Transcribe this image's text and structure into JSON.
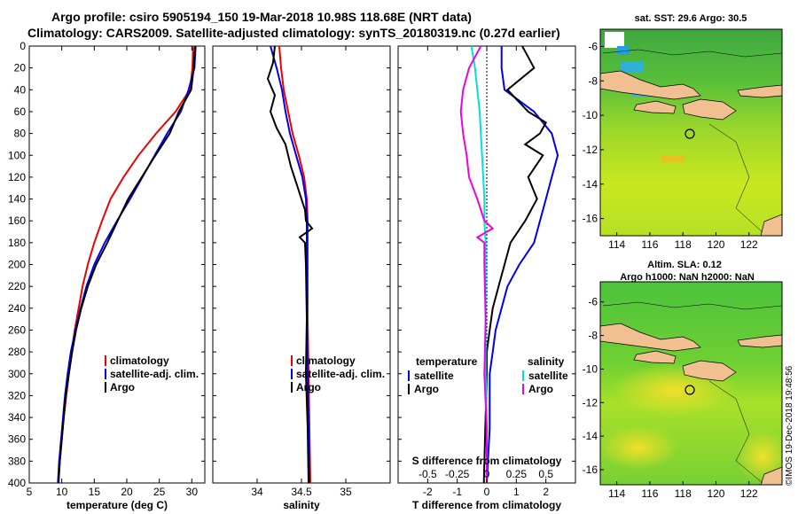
{
  "header": {
    "line1": "Argo profile: csiro 5905194_150 19-Mar-2018 10.98S 118.68E (NRT data)",
    "line2": "Climatology: CARS2009. Satellite-adjusted climatology: synTS_20180319.nc (0.27d earlier)"
  },
  "colors": {
    "climatology": "#ee0000",
    "satellite": "#0000ee",
    "argo": "#000000",
    "temp_sat_diff": "#0000ee",
    "sal_sat_diff": "#00e0e0",
    "sal_argo_diff": "#ee00ee",
    "land": "#f0c090"
  },
  "chart_data": [
    {
      "type": "line",
      "name": "temperature-panel",
      "xlabel": "temperature (deg C)",
      "xlim": [
        5,
        32
      ],
      "ylim": [
        400,
        0
      ],
      "xticks": [
        "5",
        "10",
        "15",
        "20",
        "25",
        "30"
      ],
      "yticks": [
        "0",
        "20",
        "40",
        "60",
        "80",
        "100",
        "120",
        "140",
        "160",
        "180",
        "200",
        "220",
        "240",
        "260",
        "280",
        "300",
        "320",
        "340",
        "360",
        "380",
        "400"
      ],
      "legend": [
        "climatology",
        "satellite-adj. clim.",
        "Argo"
      ],
      "series": [
        {
          "name": "climatology",
          "depth": [
            0,
            20,
            40,
            60,
            80,
            100,
            120,
            140,
            160,
            180,
            200,
            220,
            240,
            260,
            280,
            300,
            320,
            340,
            360,
            380,
            400
          ],
          "values": [
            30.2,
            30.1,
            29.7,
            27.5,
            24.5,
            21.8,
            19.5,
            17.5,
            16.2,
            15.0,
            14.0,
            13.2,
            12.6,
            12.0,
            11.5,
            11.1,
            10.7,
            10.3,
            10.0,
            9.7,
            9.5
          ]
        },
        {
          "name": "satellite-adj. clim.",
          "depth": [
            0,
            20,
            40,
            60,
            80,
            100,
            120,
            140,
            160,
            180,
            200,
            220,
            240,
            260,
            280,
            300,
            320,
            340,
            360,
            380,
            400
          ],
          "values": [
            30.6,
            30.4,
            29.5,
            28.3,
            26.2,
            24.3,
            22.4,
            20.5,
            18.5,
            16.6,
            15.0,
            13.8,
            12.9,
            12.1,
            11.4,
            10.9,
            10.5,
            10.2,
            9.9,
            9.6,
            9.4
          ]
        },
        {
          "name": "Argo",
          "depth": [
            0,
            20,
            40,
            60,
            80,
            100,
            120,
            140,
            160,
            180,
            200,
            220,
            240,
            260,
            280,
            300,
            320,
            340,
            360,
            380,
            400
          ],
          "values": [
            30.5,
            30.3,
            29.9,
            28.0,
            26.6,
            24.4,
            22.3,
            20.2,
            18.6,
            17.0,
            15.3,
            14.0,
            13.0,
            12.2,
            11.6,
            11.1,
            10.6,
            10.3,
            10.0,
            9.7,
            9.5
          ]
        }
      ]
    },
    {
      "type": "line",
      "name": "salinity-panel",
      "xlabel": "salinity",
      "xlim": [
        33.5,
        35.5
      ],
      "ylim": [
        400,
        0
      ],
      "xticks": [
        "34",
        "34.5",
        "35"
      ],
      "legend": [
        "climatology",
        "satellite-adj. clim.",
        "Argo"
      ],
      "series": [
        {
          "name": "climatology",
          "depth": [
            0,
            20,
            40,
            60,
            80,
            100,
            120,
            140,
            160,
            180,
            200,
            250,
            300,
            350,
            400
          ],
          "values": [
            34.25,
            34.27,
            34.3,
            34.35,
            34.4,
            34.47,
            34.53,
            34.56,
            34.57,
            34.57,
            34.57,
            34.57,
            34.58,
            34.59,
            34.6
          ]
        },
        {
          "name": "satellite-adj. clim.",
          "depth": [
            0,
            20,
            40,
            60,
            80,
            100,
            120,
            140,
            160,
            180,
            200,
            250,
            300,
            350,
            400
          ],
          "values": [
            34.15,
            34.22,
            34.28,
            34.32,
            34.37,
            34.44,
            34.51,
            34.55,
            34.56,
            34.56,
            34.56,
            34.56,
            34.57,
            34.58,
            34.59
          ]
        },
        {
          "name": "Argo",
          "depth": [
            0,
            15,
            30,
            45,
            60,
            75,
            90,
            110,
            130,
            150,
            160,
            167,
            175,
            180,
            200,
            250,
            300,
            350,
            400
          ],
          "values": [
            34.2,
            34.18,
            34.12,
            34.2,
            34.15,
            34.22,
            34.32,
            34.38,
            34.46,
            34.54,
            34.55,
            34.62,
            34.48,
            34.54,
            34.55,
            34.56,
            34.55,
            34.57,
            34.58
          ]
        }
      ]
    },
    {
      "type": "line",
      "name": "difference-panel",
      "xlabel": "T difference from climatology",
      "top_axis_label": "S difference from climatology",
      "xlim": [
        -3,
        3
      ],
      "ylim": [
        400,
        0
      ],
      "xticks": [
        "-2",
        "-1",
        "0",
        "1",
        "2"
      ],
      "sticks": [
        "-0.5",
        "-0.25",
        "0",
        "0.25",
        "0.5"
      ],
      "legend_temperature_title": "temperature",
      "legend_salinity_title": "salinity",
      "legend_temperature": [
        "satellite",
        "Argo"
      ],
      "legend_salinity": [
        "satellite",
        "Argo"
      ],
      "series": [
        {
          "name": "temperature satellite",
          "depth": [
            0,
            20,
            40,
            60,
            80,
            100,
            120,
            140,
            160,
            180,
            200,
            220,
            240,
            260,
            280,
            300,
            350,
            400
          ],
          "values": [
            0.5,
            0.5,
            0.6,
            1.6,
            2.2,
            2.4,
            2.2,
            2.0,
            1.8,
            1.6,
            1.1,
            0.7,
            0.5,
            0.3,
            0.2,
            0.1,
            0.1,
            0.0
          ]
        },
        {
          "name": "temperature Argo",
          "depth": [
            0,
            10,
            20,
            40,
            60,
            70,
            80,
            90,
            100,
            120,
            140,
            160,
            180,
            200,
            220,
            240,
            260,
            280,
            300,
            350,
            400
          ],
          "values": [
            1.2,
            1.4,
            1.6,
            0.7,
            1.4,
            2.0,
            1.8,
            1.3,
            1.9,
            1.4,
            1.7,
            1.3,
            0.8,
            0.6,
            0.4,
            0.2,
            0.1,
            0.0,
            0.0,
            -0.05,
            -0.1
          ]
        },
        {
          "name": "salinity satellite",
          "depth": [
            0,
            20,
            40,
            60,
            80,
            100,
            120,
            140,
            160,
            180,
            200,
            250,
            300,
            350,
            400
          ],
          "values": [
            -0.13,
            -0.1,
            -0.08,
            -0.06,
            -0.05,
            -0.04,
            -0.03,
            -0.02,
            -0.02,
            -0.01,
            -0.01,
            -0.01,
            -0.01,
            0.0,
            0.0
          ]
        },
        {
          "name": "salinity Argo",
          "depth": [
            0,
            20,
            40,
            60,
            80,
            100,
            120,
            140,
            160,
            167,
            175,
            180,
            200,
            250,
            300,
            350,
            400
          ],
          "values": [
            -0.05,
            -0.15,
            -0.2,
            -0.22,
            -0.2,
            -0.17,
            -0.15,
            -0.08,
            -0.02,
            0.05,
            -0.08,
            -0.02,
            -0.02,
            -0.01,
            -0.02,
            0.0,
            0.0
          ]
        }
      ]
    }
  ],
  "maps": {
    "sst": {
      "title": "sat. SST: 29.6 Argo: 30.5",
      "xticks": [
        "114",
        "116",
        "118",
        "120",
        "122"
      ],
      "yticks": [
        "-6",
        "-8",
        "-10",
        "-12",
        "-14",
        "-16"
      ]
    },
    "sla": {
      "title1": "Altim. SLA: 0.12",
      "title2": "Argo h1000: NaN h2000: NaN",
      "xticks": [
        "114",
        "116",
        "118",
        "120",
        "122"
      ],
      "yticks": [
        "-6",
        "-8",
        "-10",
        "-12",
        "-14",
        "-16"
      ]
    },
    "argo_position": "10.98S 118.68E"
  },
  "stamp": "©IMOS 19-Dec-2018 19:48:56"
}
